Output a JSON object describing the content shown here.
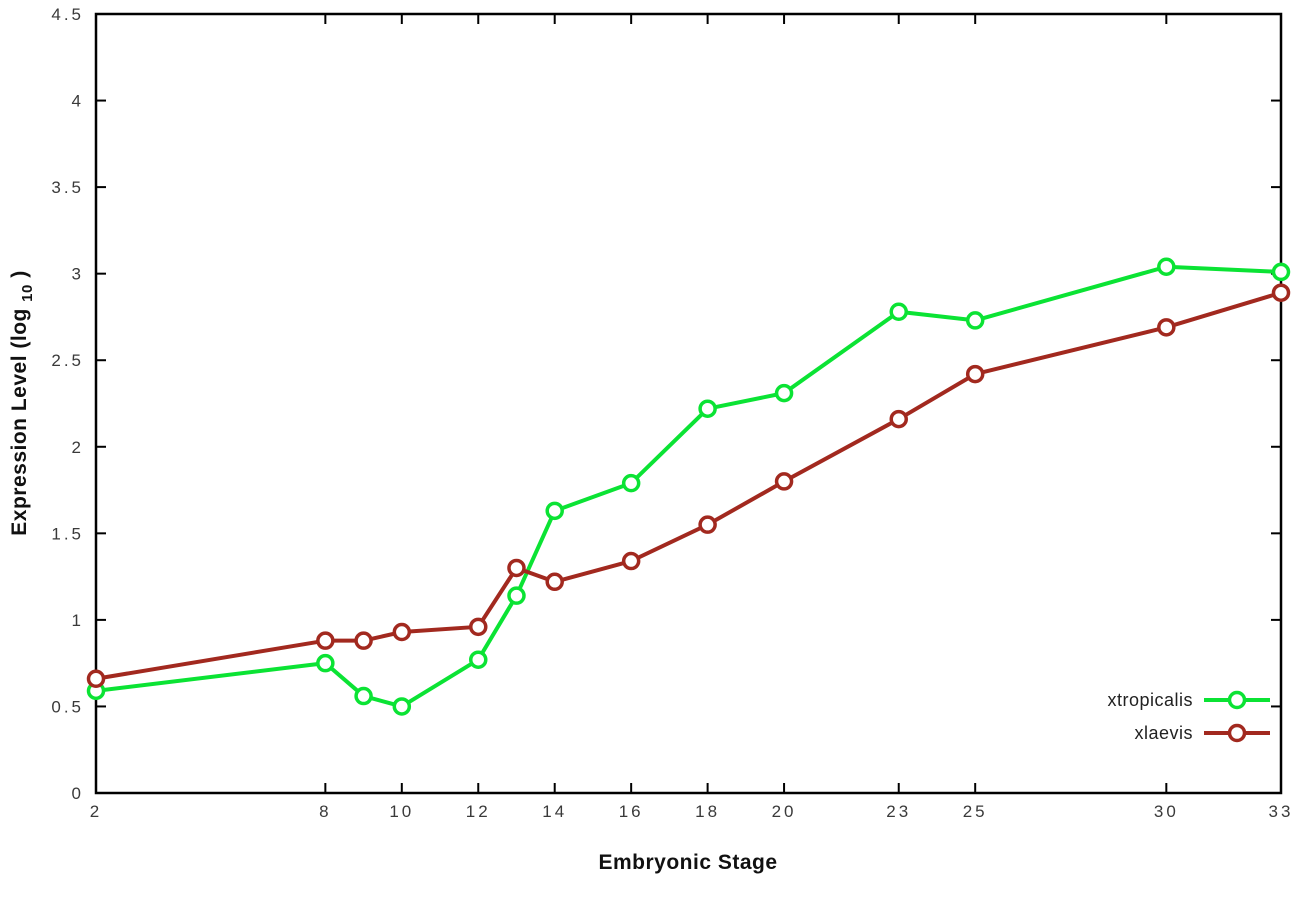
{
  "page": {
    "background": "#ffffff"
  },
  "chart_data": {
    "type": "line",
    "title": "",
    "xlabel": "Embryonic Stage",
    "ylabel": {
      "text": "Expression Level (log",
      "sub": "10",
      "close": ")"
    },
    "x": [
      2,
      8,
      9,
      10,
      12,
      13,
      14,
      16,
      18,
      20,
      23,
      25,
      30,
      33
    ],
    "xlim": [
      2,
      33
    ],
    "ylim": [
      0,
      4.5
    ],
    "xticks": [
      "2",
      "8",
      "10",
      "12",
      "14",
      "16",
      "18",
      "20",
      "23",
      "25",
      "30",
      "33"
    ],
    "yticks": [
      "0",
      "0.5",
      "1",
      "1.5",
      "2",
      "2.5",
      "3",
      "3.5",
      "4",
      "4.5"
    ],
    "grid": false,
    "legend_position": "bottom-right",
    "axis_color": "#000000",
    "tick_label_color": "#3a3a3a",
    "marker_fill": "#ffffff",
    "series": [
      {
        "name": "xtropicalis",
        "color": "#0be334",
        "marker": "open-circle",
        "values": [
          0.59,
          0.75,
          0.56,
          0.5,
          0.77,
          1.14,
          1.63,
          1.79,
          2.22,
          2.31,
          2.78,
          2.73,
          3.04,
          3.01
        ]
      },
      {
        "name": "xlaevis",
        "color": "#a2291f",
        "marker": "open-circle",
        "values": [
          0.66,
          0.88,
          0.88,
          0.93,
          0.96,
          1.3,
          1.22,
          1.34,
          1.55,
          1.8,
          2.16,
          2.42,
          2.69,
          2.89
        ]
      }
    ]
  }
}
